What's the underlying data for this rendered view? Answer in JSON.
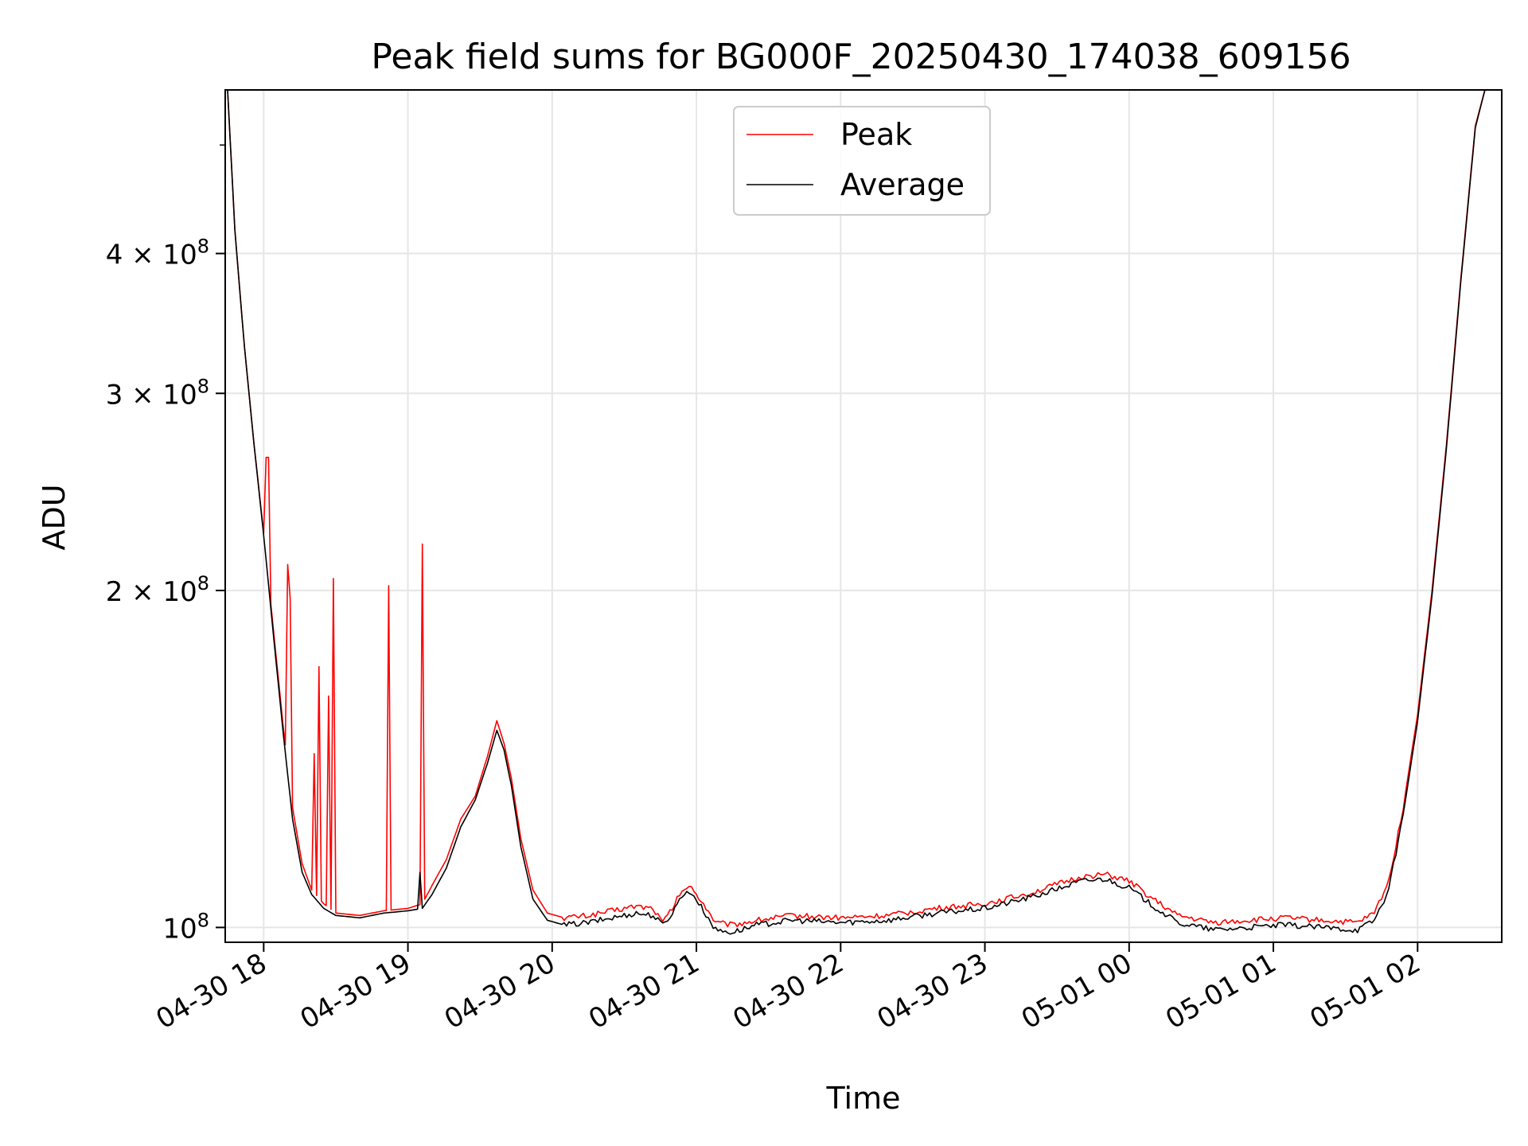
{
  "chart_data": {
    "type": "line",
    "title": "Peak field sums for BG000F_20250430_174038_609156",
    "xlabel": "Time",
    "ylabel": "ADU",
    "y_scale": "log",
    "ylim": [
      97000000,
      560000000
    ],
    "xlim": [
      "2025-04-30 17:44",
      "2025-05-01 02:35"
    ],
    "grid": true,
    "legend_position": "upper center",
    "x_ticks": [
      {
        "t": "2025-04-30 18:00",
        "label": "04-30 18"
      },
      {
        "t": "2025-04-30 19:00",
        "label": "04-30 19"
      },
      {
        "t": "2025-04-30 20:00",
        "label": "04-30 20"
      },
      {
        "t": "2025-04-30 21:00",
        "label": "04-30 21"
      },
      {
        "t": "2025-04-30 22:00",
        "label": "04-30 22"
      },
      {
        "t": "2025-04-30 23:00",
        "label": "04-30 23"
      },
      {
        "t": "2025-05-01 00:00",
        "label": "05-01 00"
      },
      {
        "t": "2025-05-01 01:00",
        "label": "05-01 01"
      },
      {
        "t": "2025-05-01 02:00",
        "label": "05-01 02"
      }
    ],
    "y_ticks": [
      {
        "value": 100000000,
        "mantissa": "",
        "exp": "8",
        "label": "10^8"
      },
      {
        "value": 200000000,
        "mantissa": "2",
        "exp": "8",
        "label": "2×10^8"
      },
      {
        "value": 300000000,
        "mantissa": "3",
        "exp": "8",
        "label": "3×10^8"
      },
      {
        "value": 400000000,
        "mantissa": "4",
        "exp": "8",
        "label": "4×10^8"
      }
    ],
    "y_minor_ticks": [
      500000000
    ],
    "series": [
      {
        "name": "Peak",
        "color": "#ff0000",
        "points": [
          [
            "2025-04-30 17:45",
            560000000
          ],
          [
            "2025-04-30 17:48",
            420000000
          ],
          [
            "2025-04-30 17:52",
            330000000
          ],
          [
            "2025-04-30 17:56",
            270000000
          ],
          [
            "2025-04-30 18:00",
            225000000
          ],
          [
            "2025-04-30 18:04",
            185000000
          ],
          [
            "2025-04-30 18:08",
            152000000
          ],
          [
            "2025-04-30 18:12",
            128000000
          ],
          [
            "2025-04-30 18:16",
            114000000
          ],
          [
            "2025-04-30 18:20",
            108000000
          ],
          [
            "2025-04-30 18:25",
            105000000
          ],
          [
            "2025-04-30 18:30",
            103000000
          ],
          [
            "2025-04-30 18:40",
            102500000
          ],
          [
            "2025-04-30 18:50",
            103500000
          ],
          [
            "2025-04-30 19:00",
            104000000
          ],
          [
            "2025-04-30 19:06",
            105000000
          ],
          [
            "2025-04-30 19:10",
            109000000
          ],
          [
            "2025-04-30 19:16",
            115000000
          ],
          [
            "2025-04-30 19:22",
            125000000
          ],
          [
            "2025-04-30 19:28",
            131000000
          ],
          [
            "2025-04-30 19:33",
            142000000
          ],
          [
            "2025-04-30 19:37",
            153000000
          ],
          [
            "2025-04-30 19:40",
            146000000
          ],
          [
            "2025-04-30 19:43",
            136000000
          ],
          [
            "2025-04-30 19:47",
            120000000
          ],
          [
            "2025-04-30 19:52",
            108000000
          ],
          [
            "2025-04-30 19:58",
            103000000
          ],
          [
            "2025-04-30 20:05",
            102000000
          ],
          [
            "2025-04-30 20:15",
            102500000
          ],
          [
            "2025-04-30 20:25",
            103500000
          ],
          [
            "2025-04-30 20:35",
            104500000
          ],
          [
            "2025-04-30 20:42",
            104000000
          ],
          [
            "2025-04-30 20:46",
            101000000
          ],
          [
            "2025-04-30 20:50",
            104000000
          ],
          [
            "2025-04-30 20:54",
            108000000
          ],
          [
            "2025-04-30 20:58",
            108500000
          ],
          [
            "2025-04-30 21:03",
            105000000
          ],
          [
            "2025-04-30 21:08",
            101000000
          ],
          [
            "2025-04-30 21:15",
            100500000
          ],
          [
            "2025-04-30 21:25",
            101500000
          ],
          [
            "2025-04-30 21:40",
            102500000
          ],
          [
            "2025-04-30 22:00",
            102000000
          ],
          [
            "2025-04-30 22:20",
            102500000
          ],
          [
            "2025-04-30 22:40",
            104000000
          ],
          [
            "2025-04-30 23:00",
            105000000
          ],
          [
            "2025-04-30 23:20",
            107500000
          ],
          [
            "2025-04-30 23:40",
            111000000
          ],
          [
            "2025-04-30 23:50",
            111500000
          ],
          [
            "2025-05-01 00:00",
            110000000
          ],
          [
            "2025-05-01 00:10",
            106000000
          ],
          [
            "2025-05-01 00:20",
            102500000
          ],
          [
            "2025-05-01 00:35",
            101000000
          ],
          [
            "2025-05-01 00:50",
            101500000
          ],
          [
            "2025-05-01 01:05",
            102000000
          ],
          [
            "2025-05-01 01:20",
            101500000
          ],
          [
            "2025-05-01 01:35",
            101000000
          ],
          [
            "2025-05-01 01:42",
            103000000
          ],
          [
            "2025-05-01 01:48",
            110000000
          ],
          [
            "2025-05-01 01:54",
            128000000
          ],
          [
            "2025-05-01 02:00",
            155000000
          ],
          [
            "2025-05-01 02:06",
            200000000
          ],
          [
            "2025-05-01 02:12",
            270000000
          ],
          [
            "2025-05-01 02:18",
            380000000
          ],
          [
            "2025-05-01 02:24",
            520000000
          ],
          [
            "2025-05-01 02:28",
            560000000
          ]
        ],
        "spikes": [
          [
            "2025-04-30 18:01",
            263000000
          ],
          [
            "2025-04-30 18:02",
            263000000
          ],
          [
            "2025-04-30 18:10",
            211000000
          ],
          [
            "2025-04-30 18:11",
            197000000
          ],
          [
            "2025-04-30 18:21",
            143000000
          ],
          [
            "2025-04-30 18:23",
            171000000
          ],
          [
            "2025-04-30 18:27",
            161000000
          ],
          [
            "2025-04-30 18:29",
            205000000
          ],
          [
            "2025-04-30 18:52",
            202000000
          ],
          [
            "2025-04-30 19:06",
            220000000
          ]
        ]
      },
      {
        "name": "Average",
        "color": "#000000",
        "points": [
          [
            "2025-04-30 17:45",
            560000000
          ],
          [
            "2025-04-30 17:48",
            420000000
          ],
          [
            "2025-04-30 17:52",
            330000000
          ],
          [
            "2025-04-30 17:56",
            270000000
          ],
          [
            "2025-04-30 18:00",
            224000000
          ],
          [
            "2025-04-30 18:04",
            183000000
          ],
          [
            "2025-04-30 18:08",
            150000000
          ],
          [
            "2025-04-30 18:12",
            125000000
          ],
          [
            "2025-04-30 18:16",
            112000000
          ],
          [
            "2025-04-30 18:20",
            107000000
          ],
          [
            "2025-04-30 18:25",
            104000000
          ],
          [
            "2025-04-30 18:30",
            102500000
          ],
          [
            "2025-04-30 18:40",
            102000000
          ],
          [
            "2025-04-30 18:50",
            103000000
          ],
          [
            "2025-04-30 19:00",
            103500000
          ],
          [
            "2025-04-30 19:06",
            104000000
          ],
          [
            "2025-04-30 19:10",
            107000000
          ],
          [
            "2025-04-30 19:16",
            113000000
          ],
          [
            "2025-04-30 19:22",
            123000000
          ],
          [
            "2025-04-30 19:28",
            130000000
          ],
          [
            "2025-04-30 19:33",
            140000000
          ],
          [
            "2025-04-30 19:37",
            150000000
          ],
          [
            "2025-04-30 19:40",
            144000000
          ],
          [
            "2025-04-30 19:43",
            134000000
          ],
          [
            "2025-04-30 19:47",
            118000000
          ],
          [
            "2025-04-30 19:52",
            106000000
          ],
          [
            "2025-04-30 19:58",
            101500000
          ],
          [
            "2025-04-30 20:05",
            100500000
          ],
          [
            "2025-04-30 20:15",
            101000000
          ],
          [
            "2025-04-30 20:25",
            102000000
          ],
          [
            "2025-04-30 20:35",
            103000000
          ],
          [
            "2025-04-30 20:42",
            102500000
          ],
          [
            "2025-04-30 20:46",
            100500000
          ],
          [
            "2025-04-30 20:50",
            103000000
          ],
          [
            "2025-04-30 20:54",
            107000000
          ],
          [
            "2025-04-30 20:58",
            107500000
          ],
          [
            "2025-04-30 21:03",
            103500000
          ],
          [
            "2025-04-30 21:08",
            99500000
          ],
          [
            "2025-04-30 21:15",
            99000000
          ],
          [
            "2025-04-30 21:25",
            100500000
          ],
          [
            "2025-04-30 21:40",
            101500000
          ],
          [
            "2025-04-30 22:00",
            101000000
          ],
          [
            "2025-04-30 22:20",
            101500000
          ],
          [
            "2025-04-30 22:40",
            103000000
          ],
          [
            "2025-04-30 23:00",
            104000000
          ],
          [
            "2025-04-30 23:20",
            106500000
          ],
          [
            "2025-04-30 23:40",
            110000000
          ],
          [
            "2025-04-30 23:50",
            110500000
          ],
          [
            "2025-05-01 00:00",
            108500000
          ],
          [
            "2025-05-01 00:10",
            104500000
          ],
          [
            "2025-05-01 00:20",
            101000000
          ],
          [
            "2025-05-01 00:35",
            99500000
          ],
          [
            "2025-05-01 00:50",
            100000000
          ],
          [
            "2025-05-01 01:05",
            100500000
          ],
          [
            "2025-05-01 01:20",
            100000000
          ],
          [
            "2025-05-01 01:35",
            99500000
          ],
          [
            "2025-05-01 01:42",
            101500000
          ],
          [
            "2025-05-01 01:48",
            108000000
          ],
          [
            "2025-05-01 01:54",
            126000000
          ],
          [
            "2025-05-01 02:00",
            153000000
          ],
          [
            "2025-05-01 02:06",
            198000000
          ],
          [
            "2025-05-01 02:12",
            268000000
          ],
          [
            "2025-05-01 02:18",
            378000000
          ],
          [
            "2025-05-01 02:24",
            518000000
          ],
          [
            "2025-05-01 02:28",
            560000000
          ]
        ],
        "spikes": [
          [
            "2025-04-30 19:05",
            112000000
          ]
        ]
      }
    ]
  }
}
